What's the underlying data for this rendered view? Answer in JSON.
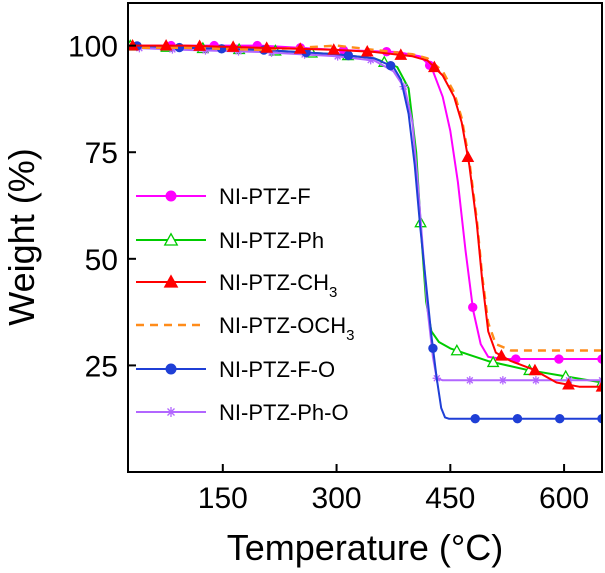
{
  "chart_data": {
    "type": "line",
    "title": "",
    "xlabel": "Temperature (°C)",
    "ylabel": "Weight (%)",
    "xlim": [
      25,
      650
    ],
    "ylim": [
      0,
      110
    ],
    "xticks": [
      150,
      300,
      450,
      600
    ],
    "yticks": [
      25,
      50,
      75,
      100
    ],
    "grid": false,
    "legend_position": "left",
    "series": [
      {
        "name": "NI-PTZ-F",
        "label_parts": {
          "base": "NI-PTZ-F",
          "sub": "",
          "tail": ""
        },
        "color": "#ff00ff",
        "marker": "circle",
        "dashed": false,
        "x": [
          25,
          100,
          200,
          300,
          380,
          410,
          425,
          440,
          450,
          460,
          470,
          480,
          490,
          500,
          520,
          650
        ],
        "y": [
          100,
          100,
          100,
          99,
          98.5,
          97.5,
          95,
          88,
          80,
          68,
          52,
          38,
          30,
          27,
          26.5,
          26.5
        ]
      },
      {
        "name": "NI-PTZ-Ph",
        "label_parts": {
          "base": "NI-PTZ-Ph",
          "sub": "",
          "tail": ""
        },
        "color": "#00cc00",
        "marker": "triangle-open",
        "dashed": false,
        "x": [
          25,
          100,
          200,
          300,
          350,
          380,
          395,
          405,
          412,
          418,
          425,
          435,
          450,
          475,
          500,
          550,
          600,
          650
        ],
        "y": [
          100,
          99.5,
          99,
          98,
          97,
          95,
          90,
          75,
          55,
          40,
          33,
          30.5,
          29,
          27.5,
          26,
          24,
          22.5,
          21
        ]
      },
      {
        "name": "NI-PTZ-CH3",
        "label_parts": {
          "base": "NI-PTZ-CH",
          "sub": "3",
          "tail": ""
        },
        "color": "#ff0000",
        "marker": "triangle",
        "dashed": false,
        "x": [
          25,
          100,
          200,
          300,
          350,
          400,
          420,
          440,
          455,
          465,
          475,
          485,
          492,
          500,
          510,
          530,
          560,
          590,
          620,
          650
        ],
        "y": [
          100,
          100,
          99.5,
          99,
          98.5,
          97.5,
          96.5,
          93,
          88,
          82,
          72,
          58,
          45,
          33,
          28,
          26,
          24,
          21,
          20,
          20
        ]
      },
      {
        "name": "NI-PTZ-OCH3",
        "label_parts": {
          "base": "NI-PTZ-OCH",
          "sub": "3",
          "tail": ""
        },
        "color": "#ff8c1a",
        "marker": "none",
        "dashed": true,
        "x": [
          25,
          100,
          200,
          300,
          350,
          400,
          420,
          440,
          455,
          465,
          475,
          485,
          492,
          500,
          510,
          530,
          650
        ],
        "y": [
          99.5,
          99.5,
          99,
          100,
          99,
          98,
          97,
          94,
          89,
          83,
          73,
          59,
          46,
          35,
          30,
          28.5,
          28.5
        ]
      },
      {
        "name": "NI-PTZ-F-O",
        "label_parts": {
          "base": "NI-PTZ-F-O",
          "sub": "",
          "tail": ""
        },
        "color": "#1f3fd6",
        "marker": "circle",
        "dashed": false,
        "x": [
          25,
          100,
          200,
          300,
          350,
          375,
          385,
          395,
          403,
          410,
          418,
          425,
          432,
          438,
          443,
          448,
          650
        ],
        "y": [
          100,
          99.5,
          99,
          98,
          97,
          95,
          92,
          84,
          72,
          58,
          44,
          32,
          22,
          15,
          12.8,
          12.5,
          12.5
        ]
      },
      {
        "name": "NI-PTZ-Ph-O",
        "label_parts": {
          "base": "NI-PTZ-Ph-O",
          "sub": "",
          "tail": ""
        },
        "color": "#b266ff",
        "marker": "star",
        "dashed": false,
        "x": [
          25,
          100,
          200,
          300,
          350,
          375,
          390,
          400,
          407,
          414,
          420,
          427,
          432,
          440,
          650
        ],
        "y": [
          99.5,
          99,
          98.5,
          97.5,
          96.5,
          94,
          90,
          82,
          68,
          52,
          38,
          27,
          22,
          21.5,
          21.5
        ]
      }
    ]
  }
}
